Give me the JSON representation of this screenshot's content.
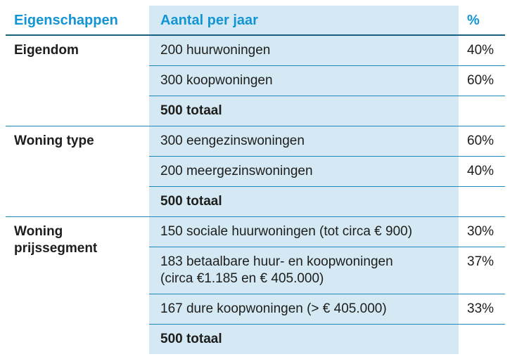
{
  "table": {
    "headers": {
      "col1": "Eigenschappen",
      "col2": "Aantal per jaar",
      "col3": "%"
    },
    "colors": {
      "accent_text": "#1295d5",
      "band_background": "#d4e9f4",
      "header_rule": "#19607e",
      "row_rule": "#1e88b8",
      "body_text": "#1d1d1b"
    },
    "groups": [
      {
        "label": "Eigendom",
        "rows": [
          {
            "text": "200 huurwoningen",
            "pct": "40%",
            "total": false
          },
          {
            "text": "300 koopwoningen",
            "pct": "60%",
            "total": false
          },
          {
            "text": "500 totaal",
            "pct": "",
            "total": true
          }
        ]
      },
      {
        "label": "Woning type",
        "rows": [
          {
            "text": "300 eengezinswoningen",
            "pct": "60%",
            "total": false
          },
          {
            "text": "200 meergezinswoningen",
            "pct": "40%",
            "total": false
          },
          {
            "text": "500 totaal",
            "pct": "",
            "total": true
          }
        ]
      },
      {
        "label": "Woning\nprijssegment",
        "rows": [
          {
            "text": "150 sociale huurwoningen (tot circa € 900)",
            "pct": "30%",
            "total": false
          },
          {
            "text": "183 betaalbare huur- en koopwoningen\n(circa €1.185 en € 405.000)",
            "pct": "37%",
            "total": false
          },
          {
            "text": "167 dure koopwoningen (> € 405.000)",
            "pct": "33%",
            "total": false
          },
          {
            "text": "500 totaal",
            "pct": "",
            "total": true
          }
        ]
      }
    ]
  }
}
